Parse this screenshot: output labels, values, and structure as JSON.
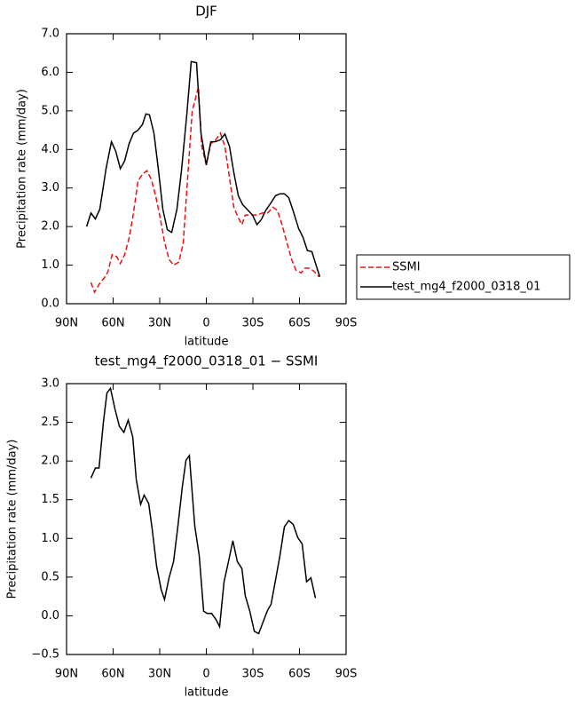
{
  "chart_data": [
    {
      "type": "line",
      "title": "DJF",
      "x_label": "latitude",
      "y_label": "Precipitation rate (mm/day)",
      "xlim": [
        90,
        -90
      ],
      "xticks": [
        {
          "value": 90,
          "label": "90N"
        },
        {
          "value": 60,
          "label": "60N"
        },
        {
          "value": 30,
          "label": "30N"
        },
        0,
        {
          "value": -30,
          "label": "30S"
        },
        {
          "value": -60,
          "label": "60S"
        },
        {
          "value": -90,
          "label": "90S"
        }
      ],
      "ylim": [
        0,
        7
      ],
      "yticks": [
        {
          "value": 0,
          "label": "0.0"
        },
        {
          "value": 1,
          "label": "1.0"
        },
        {
          "value": 2,
          "label": "2.0"
        },
        {
          "value": 3,
          "label": "3.0"
        },
        {
          "value": 4,
          "label": "4.0"
        },
        {
          "value": 5,
          "label": "5.0"
        },
        {
          "value": 6,
          "label": "6.0"
        },
        {
          "value": 7,
          "label": "7.0"
        }
      ],
      "legend": "outside-right",
      "series": [
        {
          "name": "SSMI",
          "color": "#e8120f",
          "dash": true,
          "x": [
            74.3,
            72,
            69.1,
            65.7,
            63.4,
            60.6,
            57.7,
            55.4,
            52.6,
            49.7,
            46.9,
            44,
            41.1,
            38.3,
            35.4,
            32.6,
            29.7,
            26.9,
            24,
            21.1,
            17.7,
            14.9,
            12,
            9.1,
            5.1,
            2.9,
            0,
            -2.9,
            -6.3,
            -9.1,
            -12,
            -14.9,
            -17.7,
            -20.6,
            -22.9,
            -25.1,
            -28.6,
            -32.6,
            -36,
            -39.4,
            -42.9,
            -45.7,
            -48.6,
            -51.4,
            -54.9,
            -57.7,
            -61.1,
            -63.4,
            -66.3,
            -69.1,
            -72.6
          ],
          "values": [
            0.55,
            0.3,
            0.5,
            0.67,
            0.83,
            1.27,
            1.22,
            1.04,
            1.27,
            1.7,
            2.35,
            3.18,
            3.36,
            3.45,
            3.22,
            2.8,
            2.23,
            1.6,
            1.15,
            1.0,
            1.08,
            1.55,
            3.27,
            5.0,
            5.62,
            4.07,
            3.6,
            4.15,
            4.26,
            4.42,
            4.07,
            3.27,
            2.5,
            2.23,
            2.05,
            2.3,
            2.3,
            2.3,
            2.35,
            2.35,
            2.5,
            2.42,
            2.07,
            1.66,
            1.15,
            0.87,
            0.8,
            0.92,
            0.92,
            0.85,
            0.7
          ]
        },
        {
          "name": "test_mg4_f2000_0318_01",
          "color": "#000000",
          "dash": false,
          "x": [
            77.1,
            74.3,
            71.4,
            68.6,
            64.6,
            61.1,
            58.3,
            55.4,
            52.6,
            49.7,
            46.9,
            44,
            41.1,
            38.9,
            36.6,
            33.7,
            30.9,
            28,
            25.1,
            22.3,
            18.9,
            16,
            12.6,
            9.7,
            6.3,
            3.4,
            0,
            -2.9,
            -5.7,
            -9.1,
            -12,
            -14.9,
            -17.7,
            -20.6,
            -23.4,
            -26.9,
            -29.7,
            -32.6,
            -35.4,
            -38.3,
            -41.7,
            -44.6,
            -47.4,
            -50.3,
            -53.1,
            -56,
            -59.4,
            -62.3,
            -65.1,
            -68,
            -70.9,
            -73.1
          ],
          "values": [
            2.0,
            2.35,
            2.2,
            2.45,
            3.5,
            4.2,
            3.95,
            3.5,
            3.7,
            4.15,
            4.42,
            4.5,
            4.65,
            4.92,
            4.9,
            4.42,
            3.5,
            2.45,
            1.92,
            1.85,
            2.45,
            3.45,
            4.9,
            6.28,
            6.25,
            4.42,
            3.6,
            4.2,
            4.2,
            4.25,
            4.4,
            4.08,
            3.4,
            2.8,
            2.57,
            2.42,
            2.3,
            2.05,
            2.18,
            2.42,
            2.62,
            2.8,
            2.85,
            2.85,
            2.75,
            2.4,
            1.95,
            1.72,
            1.38,
            1.35,
            0.97,
            0.7
          ]
        }
      ]
    },
    {
      "type": "line",
      "title": "test_mg4_f2000_0318_01 − SSMI",
      "x_label": "latitude",
      "y_label": "Precipitation rate (mm/day)",
      "xlim": [
        90,
        -90
      ],
      "xticks": [
        {
          "value": 90,
          "label": "90N"
        },
        {
          "value": 60,
          "label": "60N"
        },
        {
          "value": 30,
          "label": "30N"
        },
        0,
        {
          "value": -30,
          "label": "30S"
        },
        {
          "value": -60,
          "label": "60S"
        },
        {
          "value": -90,
          "label": "90S"
        }
      ],
      "ylim": [
        -0.5,
        3
      ],
      "yticks": [
        {
          "value": -0.5,
          "label": "−0.5"
        },
        {
          "value": 0,
          "label": "0.0"
        },
        0.5,
        {
          "value": 1,
          "label": "1.0"
        },
        1.5,
        {
          "value": 2,
          "label": "2.0"
        },
        2.5,
        {
          "value": 3,
          "label": "3.0"
        }
      ],
      "series": [
        {
          "color": "#000000",
          "dash": false,
          "x": [
            74.3,
            71.4,
            69.1,
            66.3,
            64,
            61.7,
            58.9,
            56,
            53.1,
            50.3,
            47.4,
            45.1,
            42.3,
            40,
            37.1,
            34.9,
            32,
            29.1,
            26.9,
            24,
            21.1,
            18.3,
            15.4,
            13.1,
            10.9,
            7.4,
            4.6,
            1.7,
            -0.6,
            -3.4,
            -6.3,
            -8.6,
            -11.4,
            -14.3,
            -17.1,
            -20,
            -22.9,
            -25.1,
            -28,
            -30.9,
            -33.7,
            -36.6,
            -39.4,
            -41.7,
            -44.6,
            -47.4,
            -50.3,
            -53.1,
            -56,
            -58.9,
            -61.7,
            -64.6,
            -67.4,
            -70.3
          ],
          "values": [
            1.78,
            1.91,
            1.91,
            2.5,
            2.88,
            2.94,
            2.68,
            2.45,
            2.37,
            2.53,
            2.31,
            1.76,
            1.44,
            1.56,
            1.45,
            1.13,
            0.64,
            0.34,
            0.21,
            0.49,
            0.7,
            1.16,
            1.67,
            2.01,
            2.07,
            1.16,
            0.78,
            0.06,
            0.03,
            0.03,
            -0.05,
            -0.14,
            0.44,
            0.7,
            0.97,
            0.7,
            0.61,
            0.26,
            0.06,
            -0.2,
            -0.23,
            -0.08,
            0.07,
            0.15,
            0.46,
            0.78,
            1.15,
            1.23,
            1.18,
            1.01,
            0.93,
            0.44,
            0.49,
            0.23
          ]
        }
      ]
    }
  ]
}
